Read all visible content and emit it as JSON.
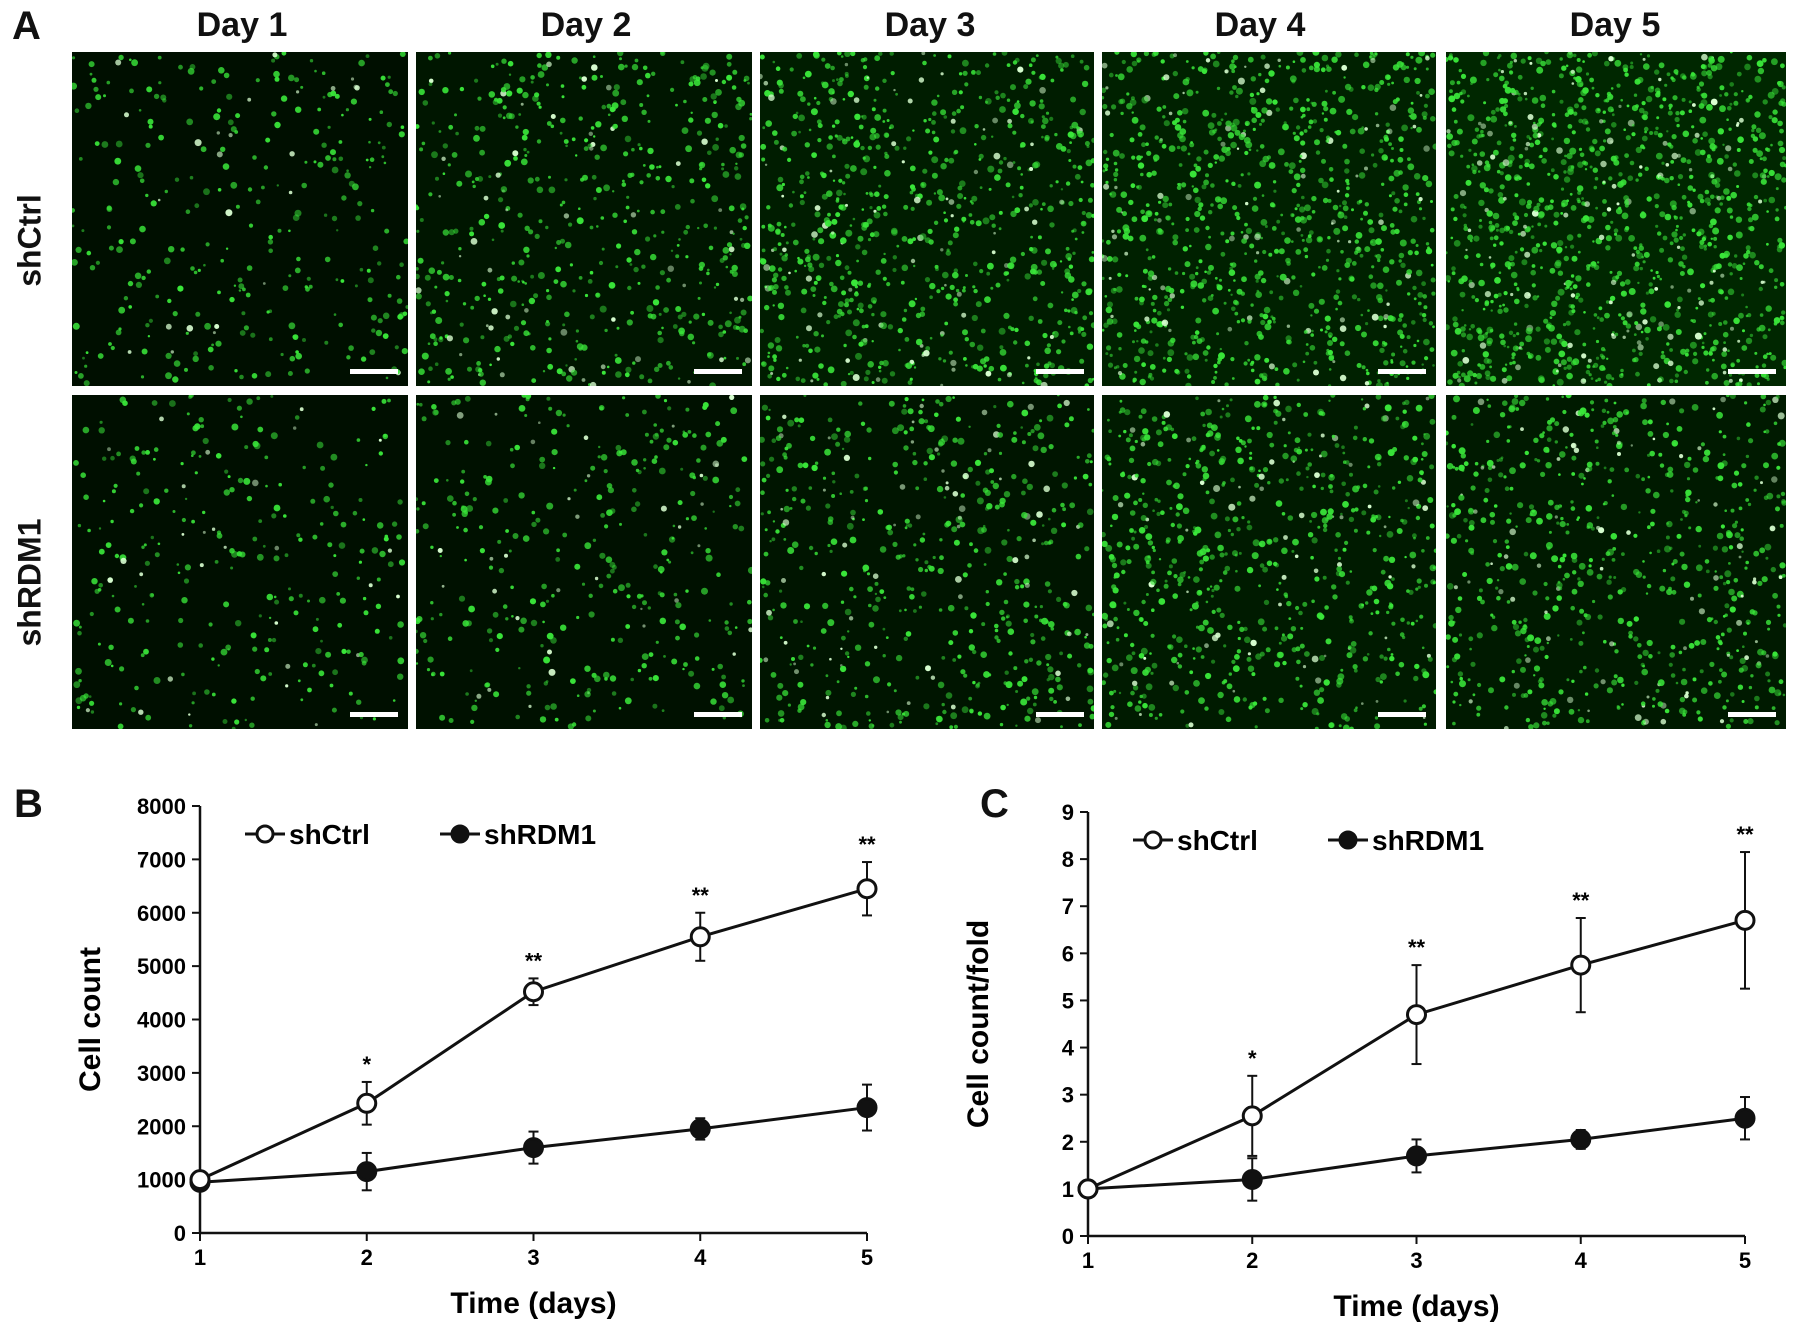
{
  "panels": {
    "a": "A",
    "b": "B",
    "c": "C"
  },
  "micrographs": {
    "day_labels": [
      "Day 1",
      "Day 2",
      "Day 3",
      "Day 4",
      "Day 5"
    ],
    "row_labels": [
      "shCtrl",
      "shRDM1"
    ],
    "cell_density": [
      [
        0.18,
        0.4,
        0.62,
        0.75,
        0.95
      ],
      [
        0.16,
        0.22,
        0.38,
        0.55,
        0.52
      ]
    ],
    "colors": {
      "cell": "#39e639",
      "bright": "#d8ffd0",
      "background": "#000000"
    }
  },
  "chart_data": [
    {
      "type": "line",
      "x": [
        1,
        2,
        3,
        4,
        5
      ],
      "xlabel": "Time (days)",
      "ylabel": "Cell count",
      "xlim": [
        1,
        5
      ],
      "ylim": [
        0,
        8000
      ],
      "yticks": [
        0,
        1000,
        2000,
        3000,
        4000,
        5000,
        6000,
        7000,
        8000
      ],
      "xticks": [
        1,
        2,
        3,
        4,
        5
      ],
      "legend_placement": "top-left",
      "series": [
        {
          "name": "shCtrl",
          "marker": "open-circle",
          "values": [
            1000,
            2430,
            4520,
            5550,
            6450
          ],
          "error": [
            0,
            400,
            250,
            450,
            500
          ]
        },
        {
          "name": "shRDM1",
          "marker": "filled-circle",
          "values": [
            950,
            1150,
            1600,
            1950,
            2350
          ],
          "error": [
            0,
            350,
            300,
            200,
            430
          ]
        }
      ],
      "significance": [
        "",
        "*",
        "**",
        "**",
        "**"
      ]
    },
    {
      "type": "line",
      "x": [
        1,
        2,
        3,
        4,
        5
      ],
      "xlabel": "Time (days)",
      "ylabel": "Cell count/fold",
      "xlim": [
        1,
        5
      ],
      "ylim": [
        0,
        9
      ],
      "yticks": [
        0,
        1,
        2,
        3,
        4,
        5,
        6,
        7,
        8,
        9
      ],
      "xticks": [
        1,
        2,
        3,
        4,
        5
      ],
      "legend_placement": "top-left",
      "series": [
        {
          "name": "shCtrl",
          "marker": "open-circle",
          "values": [
            1.0,
            2.55,
            4.7,
            5.75,
            6.7
          ],
          "error": [
            0,
            0.85,
            1.05,
            1.0,
            1.45
          ]
        },
        {
          "name": "shRDM1",
          "marker": "filled-circle",
          "values": [
            1.0,
            1.2,
            1.7,
            2.05,
            2.5
          ],
          "error": [
            0,
            0.45,
            0.35,
            0.2,
            0.45
          ]
        }
      ],
      "significance": [
        "",
        "*",
        "**",
        "**",
        "**"
      ]
    }
  ]
}
